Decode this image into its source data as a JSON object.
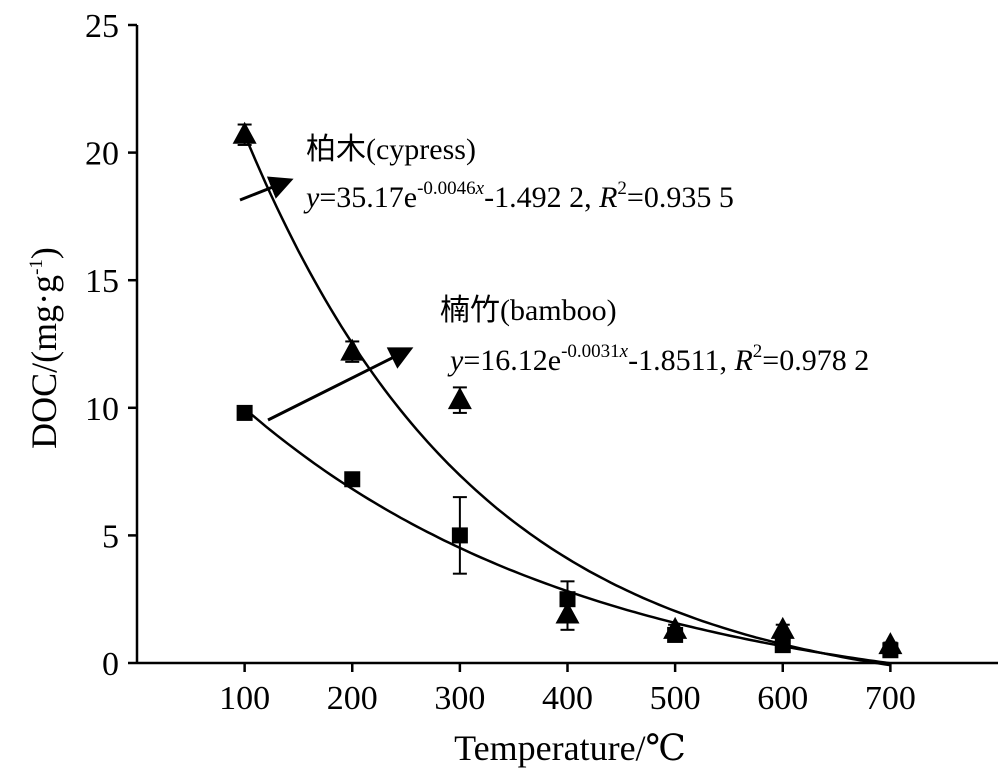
{
  "chart_data": {
    "type": "scatter",
    "xlabel": "Temperature/℃",
    "ylabel": "DOC/(mg·g",
    "ylabel_sup": "-1",
    "ylabel_close": ")",
    "xlim": [
      0,
      800
    ],
    "ylim": [
      0,
      25
    ],
    "x_ticks": [
      100,
      200,
      300,
      400,
      500,
      600,
      700
    ],
    "y_ticks": [
      0,
      5,
      10,
      15,
      20,
      25
    ],
    "grid": false,
    "series": [
      {
        "name": "柏木(cypress)",
        "marker": "triangle",
        "x": [
          100,
          200,
          300,
          400,
          500,
          600,
          700
        ],
        "y": [
          20.7,
          12.2,
          10.3,
          1.9,
          1.3,
          1.3,
          0.7
        ],
        "error": [
          0.4,
          0.4,
          0.5,
          0.6,
          0.2,
          0.2,
          0.1
        ],
        "fit": {
          "a": 35.17,
          "b": 0.0046,
          "c": -1.4922,
          "x_range": [
            100,
            700
          ]
        },
        "equation": {
          "y": "y",
          "eq1": "=35.17e",
          "exp": "-0.0046",
          "expx": "x",
          "eq2": "-1.492 2, ",
          "R": "R",
          "r2sup": "2",
          "eq3": "=0.935 5"
        }
      },
      {
        "name": "楠竹(bamboo)",
        "marker": "square",
        "x": [
          100,
          200,
          300,
          400,
          500,
          600,
          700
        ],
        "y": [
          9.8,
          7.2,
          5.0,
          2.5,
          1.1,
          0.7,
          0.5
        ],
        "error": [
          0.15,
          0.15,
          1.5,
          0.7,
          0.2,
          0.15,
          0.1
        ],
        "fit": {
          "a": 16.12,
          "b": 0.0031,
          "c": -1.8511,
          "x_range": [
            100,
            700
          ]
        },
        "equation": {
          "y": "y",
          "eq1": "=16.12e",
          "exp": "-0.0031",
          "expx": "x",
          "eq2": "-1.8511, ",
          "R": "R",
          "r2sup": "2",
          "eq3": "=0.978 2"
        }
      }
    ],
    "colors": {
      "axis": "#000000",
      "marker": "#000000",
      "curve": "#000000"
    }
  }
}
